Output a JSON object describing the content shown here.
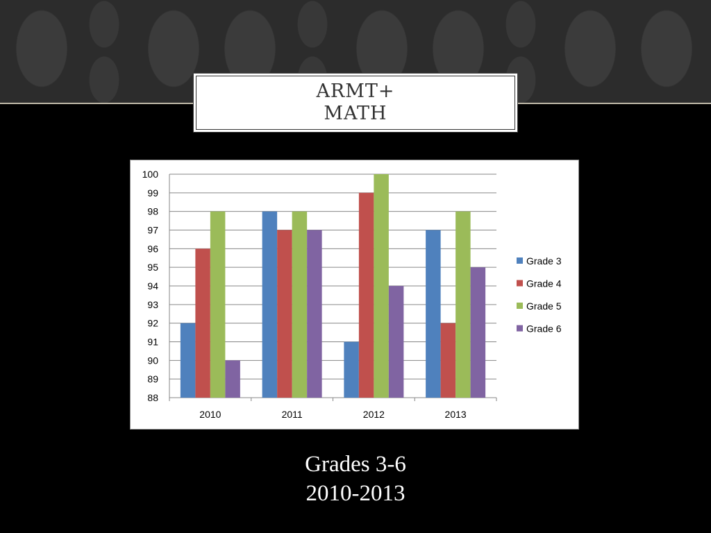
{
  "slide": {
    "title_line1": "ARMT+",
    "title_line2": "MATH",
    "subtitle_line1": "Grades 3-6",
    "subtitle_line2": "2010-2013"
  },
  "colors": {
    "background": "#000000",
    "title_text": "#333333",
    "subtitle_text": "#ffffff"
  },
  "chart_data": {
    "type": "bar",
    "title": "",
    "xlabel": "",
    "ylabel": "",
    "categories": [
      "2010",
      "2011",
      "2012",
      "2013"
    ],
    "series": [
      {
        "name": "Grade 3",
        "color": "#4f81bd",
        "values": [
          92,
          98,
          91,
          97
        ]
      },
      {
        "name": "Grade 4",
        "color": "#c0504d",
        "values": [
          96,
          97,
          99,
          92
        ]
      },
      {
        "name": "Grade 5",
        "color": "#9bbb59",
        "values": [
          98,
          98,
          100,
          98
        ]
      },
      {
        "name": "Grade 6",
        "color": "#8064a2",
        "values": [
          90,
          97,
          94,
          95
        ]
      }
    ],
    "ylim": [
      88,
      100
    ],
    "yticks": [
      88,
      89,
      90,
      91,
      92,
      93,
      94,
      95,
      96,
      97,
      98,
      99,
      100
    ],
    "grid": true,
    "legend_position": "right"
  }
}
